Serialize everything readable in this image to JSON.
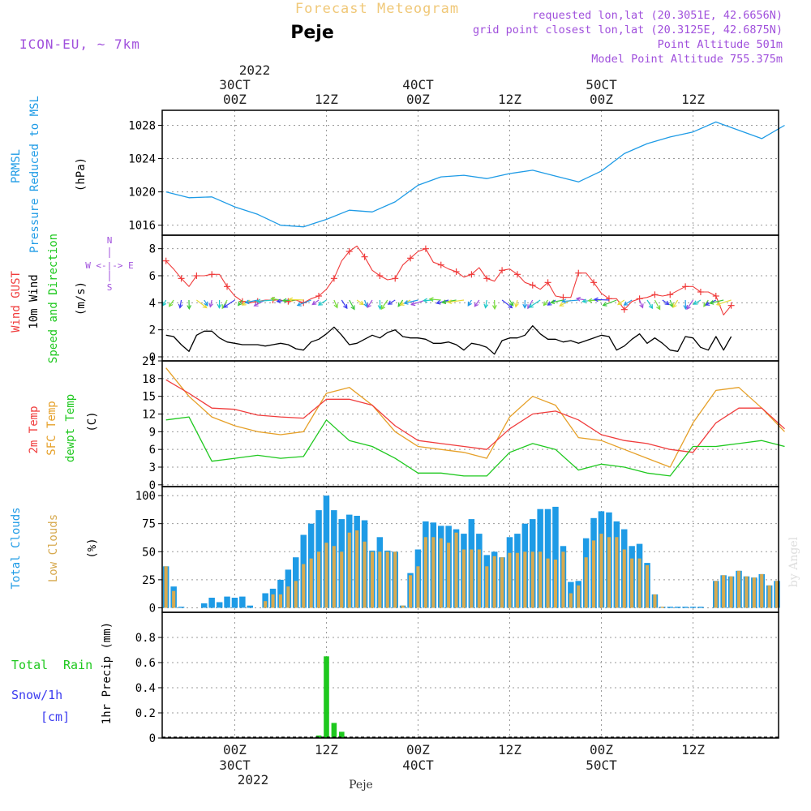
{
  "header": {
    "title": "Forecast Meteogram",
    "location": "Peje",
    "model": "ICON-EU, ~ 7km",
    "requested": "requested lon,lat (20.3051E, 42.6656N)",
    "gridpoint": "grid point closest lon,lat (20.3125E, 42.6875N)",
    "point_alt": "Point Altitude 501m",
    "model_alt": "Model Point Altitude 755.375m"
  },
  "top_axis": {
    "year": "2022",
    "ticks": [
      {
        "hours": 0,
        "line1": "30CT",
        "line2": "00Z"
      },
      {
        "hours": 12,
        "line1": "",
        "line2": "12Z"
      },
      {
        "hours": 24,
        "line1": "40CT",
        "line2": "00Z"
      },
      {
        "hours": 36,
        "line1": "",
        "line2": "12Z"
      },
      {
        "hours": 48,
        "line1": "50CT",
        "line2": "00Z"
      },
      {
        "hours": 60,
        "line1": "",
        "line2": "12Z"
      }
    ]
  },
  "bottom_axis": {
    "year": "2022",
    "ticks": [
      {
        "hours": 0,
        "line1": "00Z",
        "line2": "30CT"
      },
      {
        "hours": 12,
        "line1": "12Z",
        "line2": ""
      },
      {
        "hours": 24,
        "line1": "00Z",
        "line2": "40CT"
      },
      {
        "hours": 36,
        "line1": "12Z",
        "line2": ""
      },
      {
        "hours": 48,
        "line1": "00Z",
        "line2": "50CT"
      },
      {
        "hours": 60,
        "line1": "12Z",
        "line2": ""
      }
    ]
  },
  "footer": {
    "location": "Peje",
    "credit": "by Angel"
  },
  "panels": {
    "pressure": {
      "label1": "PRMSL",
      "label2": "Pressure Reduced to MSL",
      "unit": "(hPa)"
    },
    "wind": {
      "label_gust": "Wind GUST",
      "label_wind": "10m Wind",
      "label_dir": "Speed and Direction",
      "unit": "(m/s)",
      "compass_we": "W <-|-> E",
      "compass_n": "N",
      "compass_s": "S"
    },
    "temp": {
      "label_t2m": "2m Temp",
      "label_sfc": "SFC Temp",
      "label_dew": "dewpt Temp",
      "unit": "(C)"
    },
    "clouds": {
      "label_total": "Total Clouds",
      "label_low": "Low Clouds",
      "unit": "(%)"
    },
    "precip": {
      "label_total": "Total",
      "label_rain": "Rain",
      "label_snow": "Snow/1h",
      "label_cm": "[cm]",
      "unit": "1hr Precip (mm)"
    }
  },
  "colors": {
    "pressure": "#1e9be6",
    "gust": "#f03c3c",
    "wind": "#000000",
    "t2m": "#f03c3c",
    "sfc": "#e6a028",
    "dew": "#1ec81e",
    "total_cloud": "#1e9be6",
    "low_cloud": "#d7aa50",
    "rain": "#1ec81e",
    "title": "#f0c878",
    "purple": "#a050dc",
    "snow": "#3c3cf0"
  },
  "chart_data": [
    {
      "type": "line",
      "title": "PRMSL Pressure Reduced to MSL",
      "ylabel": "(hPa)",
      "x_start_hours": -9,
      "x_step_hours": 3,
      "ylim": [
        1014.8,
        1029.8
      ],
      "yticks": [
        1016,
        1020,
        1024,
        1028
      ],
      "series": [
        {
          "name": "PRMSL",
          "values": [
            1020.0,
            1019.3,
            1019.4,
            1018.2,
            1017.3,
            1016.0,
            1015.8,
            1016.7,
            1017.8,
            1017.6,
            1018.8,
            1020.8,
            1021.8,
            1022.0,
            1021.6,
            1022.2,
            1022.6,
            1021.9,
            1021.2,
            1022.5,
            1024.6,
            1025.8,
            1026.6,
            1027.2,
            1028.4,
            1027.4,
            1026.4,
            1028.0
          ]
        }
      ]
    },
    {
      "type": "line",
      "title": "Wind GUST / 10m Wind Speed and Direction",
      "ylabel": "(m/s)",
      "x_start_hours": -9,
      "x_step_hours": 1,
      "ylim": [
        -0.3,
        9.0
      ],
      "yticks": [
        0,
        2,
        4,
        6,
        8
      ],
      "series": [
        {
          "name": "Wind GUST",
          "values": [
            7.1,
            6.5,
            5.8,
            5.2,
            6.0,
            6.0,
            6.1,
            6.1,
            5.2,
            4.5,
            4.1,
            4.0,
            4.1,
            4.2,
            4.2,
            4.2,
            4.1,
            4.2,
            4.0,
            4.3,
            4.5,
            5.0,
            5.8,
            7.1,
            7.8,
            8.2,
            7.4,
            6.4,
            6.0,
            5.7,
            5.8,
            6.8,
            7.3,
            7.8,
            8.0,
            7.0,
            6.8,
            6.5,
            6.3,
            5.9,
            6.1,
            6.6,
            5.8,
            5.6,
            6.4,
            6.5,
            6.1,
            5.5,
            5.3,
            5.0,
            5.5,
            4.5,
            4.4,
            4.4,
            6.2,
            6.2,
            5.5,
            4.7,
            4.3,
            4.3,
            3.5,
            4.1,
            4.3,
            4.4,
            4.6,
            4.5,
            4.6,
            4.9,
            5.2,
            5.2,
            4.8,
            4.8,
            4.5,
            3.1,
            3.8
          ]
        },
        {
          "name": "10m Wind",
          "values": [
            1.6,
            1.5,
            0.9,
            0.4,
            1.6,
            1.9,
            1.9,
            1.4,
            1.1,
            1.0,
            0.9,
            0.9,
            0.9,
            0.8,
            0.9,
            1.0,
            0.9,
            0.6,
            0.5,
            1.1,
            1.3,
            1.7,
            2.2,
            1.6,
            0.9,
            1.0,
            1.3,
            1.6,
            1.4,
            1.8,
            2.0,
            1.5,
            1.4,
            1.4,
            1.3,
            1.0,
            1.0,
            1.1,
            0.9,
            0.5,
            1.0,
            0.9,
            0.7,
            0.2,
            1.2,
            1.4,
            1.4,
            1.6,
            2.3,
            1.7,
            1.3,
            1.3,
            1.1,
            1.2,
            1.0,
            1.2,
            1.4,
            1.6,
            1.5,
            0.5,
            0.8,
            1.3,
            1.7,
            1.0,
            1.4,
            1.0,
            0.5,
            0.4,
            1.5,
            1.4,
            0.7,
            0.5,
            1.5,
            0.5,
            1.5
          ]
        }
      ]
    },
    {
      "type": "line",
      "title": "2m Temp / SFC Temp / dewpt Temp",
      "ylabel": "(C)",
      "x_start_hours": -9,
      "x_step_hours": 3,
      "ylim": [
        -0.3,
        21.0
      ],
      "yticks": [
        0,
        3,
        6,
        9,
        12,
        15,
        18,
        21
      ],
      "series": [
        {
          "name": "2m Temp",
          "values": [
            17.8,
            15.5,
            13.0,
            12.8,
            11.8,
            11.5,
            11.3,
            14.5,
            14.5,
            13.5,
            10.0,
            7.5,
            7.0,
            6.5,
            6.0,
            9.5,
            12.0,
            12.5,
            11.0,
            8.5,
            7.5,
            7.0,
            6.0,
            5.5,
            10.5,
            13.0,
            13.0,
            9.5
          ]
        },
        {
          "name": "SFC Temp",
          "values": [
            19.8,
            15.0,
            11.5,
            10.0,
            9.0,
            8.5,
            9.0,
            15.5,
            16.5,
            13.5,
            9.0,
            6.5,
            6.0,
            5.5,
            4.5,
            11.5,
            15.0,
            13.5,
            8.0,
            7.5,
            6.0,
            4.5,
            3.0,
            10.5,
            16.0,
            16.5,
            13.0,
            9.0
          ]
        },
        {
          "name": "dewpt Temp",
          "values": [
            11.0,
            11.5,
            4.0,
            4.5,
            5.0,
            4.5,
            4.8,
            11.0,
            7.5,
            6.5,
            4.5,
            2.0,
            2.0,
            1.5,
            1.5,
            5.5,
            7.0,
            6.0,
            2.5,
            3.5,
            3.0,
            2.0,
            1.5,
            6.5,
            6.5,
            7.0,
            7.5,
            6.5
          ]
        }
      ]
    },
    {
      "type": "bar",
      "title": "Total Clouds / Low Clouds",
      "ylabel": "(%)",
      "x_start_hours": -9,
      "x_step_hours": 1,
      "ylim": [
        -4,
        108
      ],
      "yticks": [
        0,
        25,
        50,
        75,
        100
      ],
      "series": [
        {
          "name": "Total Clouds",
          "values": [
            37,
            19,
            1,
            0,
            0,
            4,
            9,
            5,
            10,
            9,
            10,
            2,
            0,
            13,
            17,
            25,
            34,
            45,
            65,
            75,
            87,
            100,
            87,
            79,
            83,
            82,
            78,
            51,
            63,
            51,
            50,
            2,
            31,
            52,
            77,
            76,
            73,
            73,
            70,
            66,
            79,
            66,
            47,
            50,
            45,
            63,
            66,
            75,
            79,
            88,
            88,
            90,
            55,
            23,
            24,
            62,
            80,
            86,
            85,
            77,
            70,
            55,
            57,
            40,
            12,
            1,
            1,
            1,
            1,
            1,
            1,
            0,
            24,
            29,
            28,
            33,
            28,
            27,
            30,
            20,
            24
          ]
        },
        {
          "name": "Low Clouds",
          "values": [
            37,
            15,
            0,
            0,
            0,
            0,
            0,
            0,
            0,
            0,
            0,
            0,
            0,
            6,
            12,
            12,
            19,
            24,
            39,
            44,
            50,
            58,
            55,
            50,
            67,
            69,
            59,
            50,
            50,
            50,
            50,
            2,
            29,
            37,
            63,
            63,
            62,
            58,
            67,
            52,
            52,
            52,
            37,
            46,
            45,
            49,
            49,
            50,
            50,
            50,
            44,
            43,
            50,
            13,
            20,
            45,
            60,
            66,
            63,
            63,
            52,
            44,
            44,
            38,
            12,
            1,
            0,
            0,
            0,
            0,
            0,
            0,
            24,
            29,
            28,
            33,
            28,
            27,
            30,
            20,
            24
          ]
        }
      ]
    },
    {
      "type": "bar",
      "title": "1hr Precip (mm)",
      "ylabel": "1hr Precip (mm)",
      "x_start_hours": -9,
      "x_step_hours": 1,
      "ylim": [
        0,
        1.0
      ],
      "yticks": [
        0,
        0.2,
        0.4,
        0.6,
        0.8
      ],
      "series": [
        {
          "name": "Total Rain",
          "values": [
            0,
            0,
            0,
            0,
            0,
            0,
            0,
            0,
            0,
            0,
            0,
            0,
            0,
            0,
            0,
            0,
            0,
            0,
            0,
            0,
            0.02,
            0.65,
            0.12,
            0.05,
            0,
            0,
            0,
            0,
            0,
            0,
            0,
            0,
            0,
            0,
            0,
            0,
            0,
            0,
            0,
            0,
            0,
            0,
            0,
            0,
            0,
            0,
            0,
            0,
            0,
            0,
            0,
            0,
            0,
            0,
            0,
            0,
            0,
            0,
            0,
            0,
            0,
            0,
            0,
            0,
            0,
            0,
            0,
            0,
            0,
            0,
            0,
            0,
            0,
            0,
            0,
            0,
            0
          ]
        },
        {
          "name": "Snow/1h",
          "values": []
        }
      ]
    }
  ]
}
